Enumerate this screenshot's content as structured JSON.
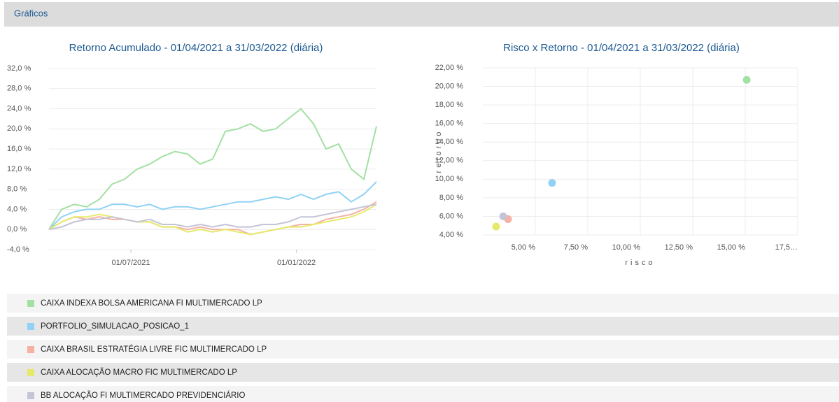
{
  "header": {
    "title": "Gráficos"
  },
  "chart_data": [
    {
      "type": "line",
      "title": "Retorno Acumulado - 01/04/2021 a 31/03/2022 (diária)",
      "x": [
        "01/04/2021",
        "15/04/2021",
        "29/04/2021",
        "13/05/2021",
        "27/05/2021",
        "10/06/2021",
        "24/06/2021",
        "08/07/2021",
        "22/07/2021",
        "05/08/2021",
        "19/08/2021",
        "02/09/2021",
        "16/09/2021",
        "30/09/2021",
        "14/10/2021",
        "28/10/2021",
        "11/11/2021",
        "25/11/2021",
        "09/12/2021",
        "23/12/2021",
        "06/01/2022",
        "20/01/2022",
        "03/02/2022",
        "17/02/2022",
        "03/03/2022",
        "17/03/2022",
        "31/03/2022"
      ],
      "xlim": [
        "01/04/2021",
        "31/03/2022"
      ],
      "xticks": [
        "01/07/2021",
        "01/01/2022"
      ],
      "ylim": [
        -4,
        32
      ],
      "yticks": [
        {
          "value": -4,
          "label": "-4,0 %"
        },
        {
          "value": 0,
          "label": "0,0 %"
        },
        {
          "value": 4,
          "label": "4,0 %"
        },
        {
          "value": 8,
          "label": "8,0 %"
        },
        {
          "value": 12,
          "label": "12,0 %"
        },
        {
          "value": 16,
          "label": "16,0 %"
        },
        {
          "value": 20,
          "label": "20,0 %"
        },
        {
          "value": 24,
          "label": "24,0 %"
        },
        {
          "value": 28,
          "label": "28,0 %"
        },
        {
          "value": 32,
          "label": "32,0 %"
        }
      ],
      "grid": true,
      "series": [
        {
          "name": "CAIXA INDEXA BOLSA AMERICANA FI MULTIMERCADO LP",
          "color": "#a3e0a3",
          "values": [
            0,
            4,
            5,
            4.5,
            6,
            9,
            10,
            12,
            13,
            14.5,
            15.5,
            15,
            13,
            14,
            19.5,
            20,
            21,
            19.5,
            20,
            22,
            24,
            21,
            16,
            17,
            12,
            10,
            20.5
          ]
        },
        {
          "name": "PORTFOLIO_SIMULACAO_POSICAO_1",
          "color": "#90d2f5",
          "values": [
            0,
            2.5,
            3.5,
            4,
            4,
            5,
            5,
            4.5,
            5,
            4,
            4.5,
            4.5,
            4,
            4.5,
            5,
            5.5,
            5.5,
            6,
            6.5,
            6,
            7,
            6,
            7,
            7.5,
            5.5,
            7,
            9.5
          ]
        },
        {
          "name": "CAIXA BRASIL ESTRATÉGIA LIVRE FIC MULTIMERCADO LP",
          "color": "#f6b1a4",
          "values": [
            0,
            1.5,
            2.5,
            2,
            2.5,
            2,
            2,
            1.5,
            1.5,
            0.5,
            0.5,
            0,
            0.5,
            0,
            0,
            0,
            -1,
            -0.5,
            0,
            0.5,
            1,
            1,
            2,
            2.5,
            3,
            4,
            5.5
          ]
        },
        {
          "name": "CAIXA ALOCAÇÃO MACRO FIC MULTIMERCADO LP",
          "color": "#e6ea6a",
          "values": [
            0,
            1.5,
            2.5,
            2.5,
            3,
            2.5,
            2,
            1.5,
            1.5,
            0.5,
            0.5,
            -0.5,
            0,
            -0.5,
            0,
            -0.5,
            -1,
            -0.5,
            0,
            0.5,
            0.5,
            1,
            1.5,
            2,
            2.5,
            3.5,
            5
          ]
        },
        {
          "name": "BB ALOCAÇÃO FI MULTIMERCADO PREVIDENCIÁRIO",
          "color": "#c4c4d8",
          "values": [
            0,
            0.5,
            1.5,
            2,
            2,
            2.5,
            2,
            1.5,
            2,
            1,
            1,
            0.5,
            1,
            0.5,
            1,
            0.5,
            0.5,
            1,
            1,
            1.5,
            2.5,
            2.5,
            3,
            3.5,
            4,
            4.5,
            5
          ]
        }
      ]
    },
    {
      "type": "scatter",
      "title": "Risco x Retorno - 01/04/2021 a 31/03/2022 (diária)",
      "x_label": "risco",
      "y_label": "retorno",
      "x": [
        15.07,
        5.8,
        3.7,
        3.13,
        3.47
      ],
      "values": [
        20.7,
        9.6,
        5.7,
        4.9,
        6.0
      ],
      "xlim": [
        2.5,
        17.5
      ],
      "xticks": [
        {
          "value": 5,
          "label": "5,00 %"
        },
        {
          "value": 7.5,
          "label": "7,50 %"
        },
        {
          "value": 10,
          "label": "10,00 %"
        },
        {
          "value": 12.5,
          "label": "12,50 %"
        },
        {
          "value": 15,
          "label": "15,00 %"
        },
        {
          "value": 17.5,
          "label": "17,5…"
        }
      ],
      "ylim": [
        4,
        22
      ],
      "yticks": [
        {
          "value": 4,
          "label": "4,00 %"
        },
        {
          "value": 6,
          "label": "6,00 %"
        },
        {
          "value": 8,
          "label": "8,00 %"
        },
        {
          "value": 10,
          "label": "10,00 %"
        },
        {
          "value": 12,
          "label": "12,00 %"
        },
        {
          "value": 14,
          "label": "14,00 %"
        },
        {
          "value": 16,
          "label": "16,00 %"
        },
        {
          "value": 18,
          "label": "18,00 %"
        },
        {
          "value": 20,
          "label": "20,00 %"
        },
        {
          "value": 22,
          "label": "22,00 %"
        }
      ],
      "grid": true
    }
  ]
}
